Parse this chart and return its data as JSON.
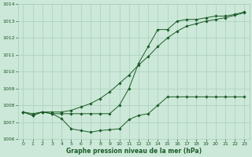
{
  "background_color": "#cce8d8",
  "grid_color": "#aacfbe",
  "line_color": "#1a5c28",
  "xlabel": "Graphe pression niveau de la mer (hPa)",
  "xlim": [
    -0.5,
    23.5
  ],
  "ylim": [
    1006,
    1014
  ],
  "yticks": [
    1006,
    1007,
    1008,
    1009,
    1010,
    1011,
    1012,
    1013,
    1014
  ],
  "xticks": [
    0,
    1,
    2,
    3,
    4,
    5,
    6,
    7,
    8,
    9,
    10,
    11,
    12,
    13,
    14,
    15,
    16,
    17,
    18,
    19,
    20,
    21,
    22,
    23
  ],
  "series": [
    {
      "x": [
        0,
        1,
        2,
        3,
        4,
        5,
        6,
        7,
        8,
        9,
        10,
        11,
        12,
        13,
        14,
        15,
        16,
        17,
        18,
        19,
        20,
        21,
        22,
        23
      ],
      "y": [
        1007.6,
        1007.4,
        1007.6,
        1007.5,
        1007.2,
        1006.6,
        1006.5,
        1006.4,
        1006.5,
        1006.55,
        1006.6,
        1007.15,
        1007.4,
        1007.5,
        1008.0,
        1008.5,
        1008.5,
        1008.5,
        1008.5,
        1008.5,
        1008.5,
        1008.5,
        1008.5,
        1008.5
      ]
    },
    {
      "x": [
        0,
        1,
        2,
        3,
        4,
        5,
        6,
        7,
        8,
        9,
        10,
        11,
        12,
        13,
        14,
        15,
        16,
        17,
        18,
        19,
        20,
        21,
        22,
        23
      ],
      "y": [
        1007.6,
        1007.5,
        1007.6,
        1007.6,
        1007.6,
        1007.7,
        1007.9,
        1008.1,
        1008.4,
        1008.8,
        1009.3,
        1009.8,
        1010.4,
        1010.9,
        1011.5,
        1012.0,
        1012.4,
        1012.7,
        1012.85,
        1013.0,
        1013.1,
        1013.2,
        1013.35,
        1013.5
      ]
    },
    {
      "x": [
        0,
        1,
        2,
        3,
        4,
        5,
        6,
        7,
        8,
        9,
        10,
        11,
        12,
        13,
        14,
        15,
        16,
        17,
        18,
        19,
        20,
        21,
        22,
        23
      ],
      "y": [
        1007.6,
        1007.4,
        1007.6,
        1007.5,
        1007.5,
        1007.5,
        1007.5,
        1007.5,
        1007.5,
        1007.5,
        1008.0,
        1009.0,
        1010.5,
        1011.5,
        1012.5,
        1012.5,
        1013.0,
        1013.1,
        1013.1,
        1013.2,
        1013.3,
        1013.3,
        1013.4,
        1013.55
      ]
    }
  ]
}
